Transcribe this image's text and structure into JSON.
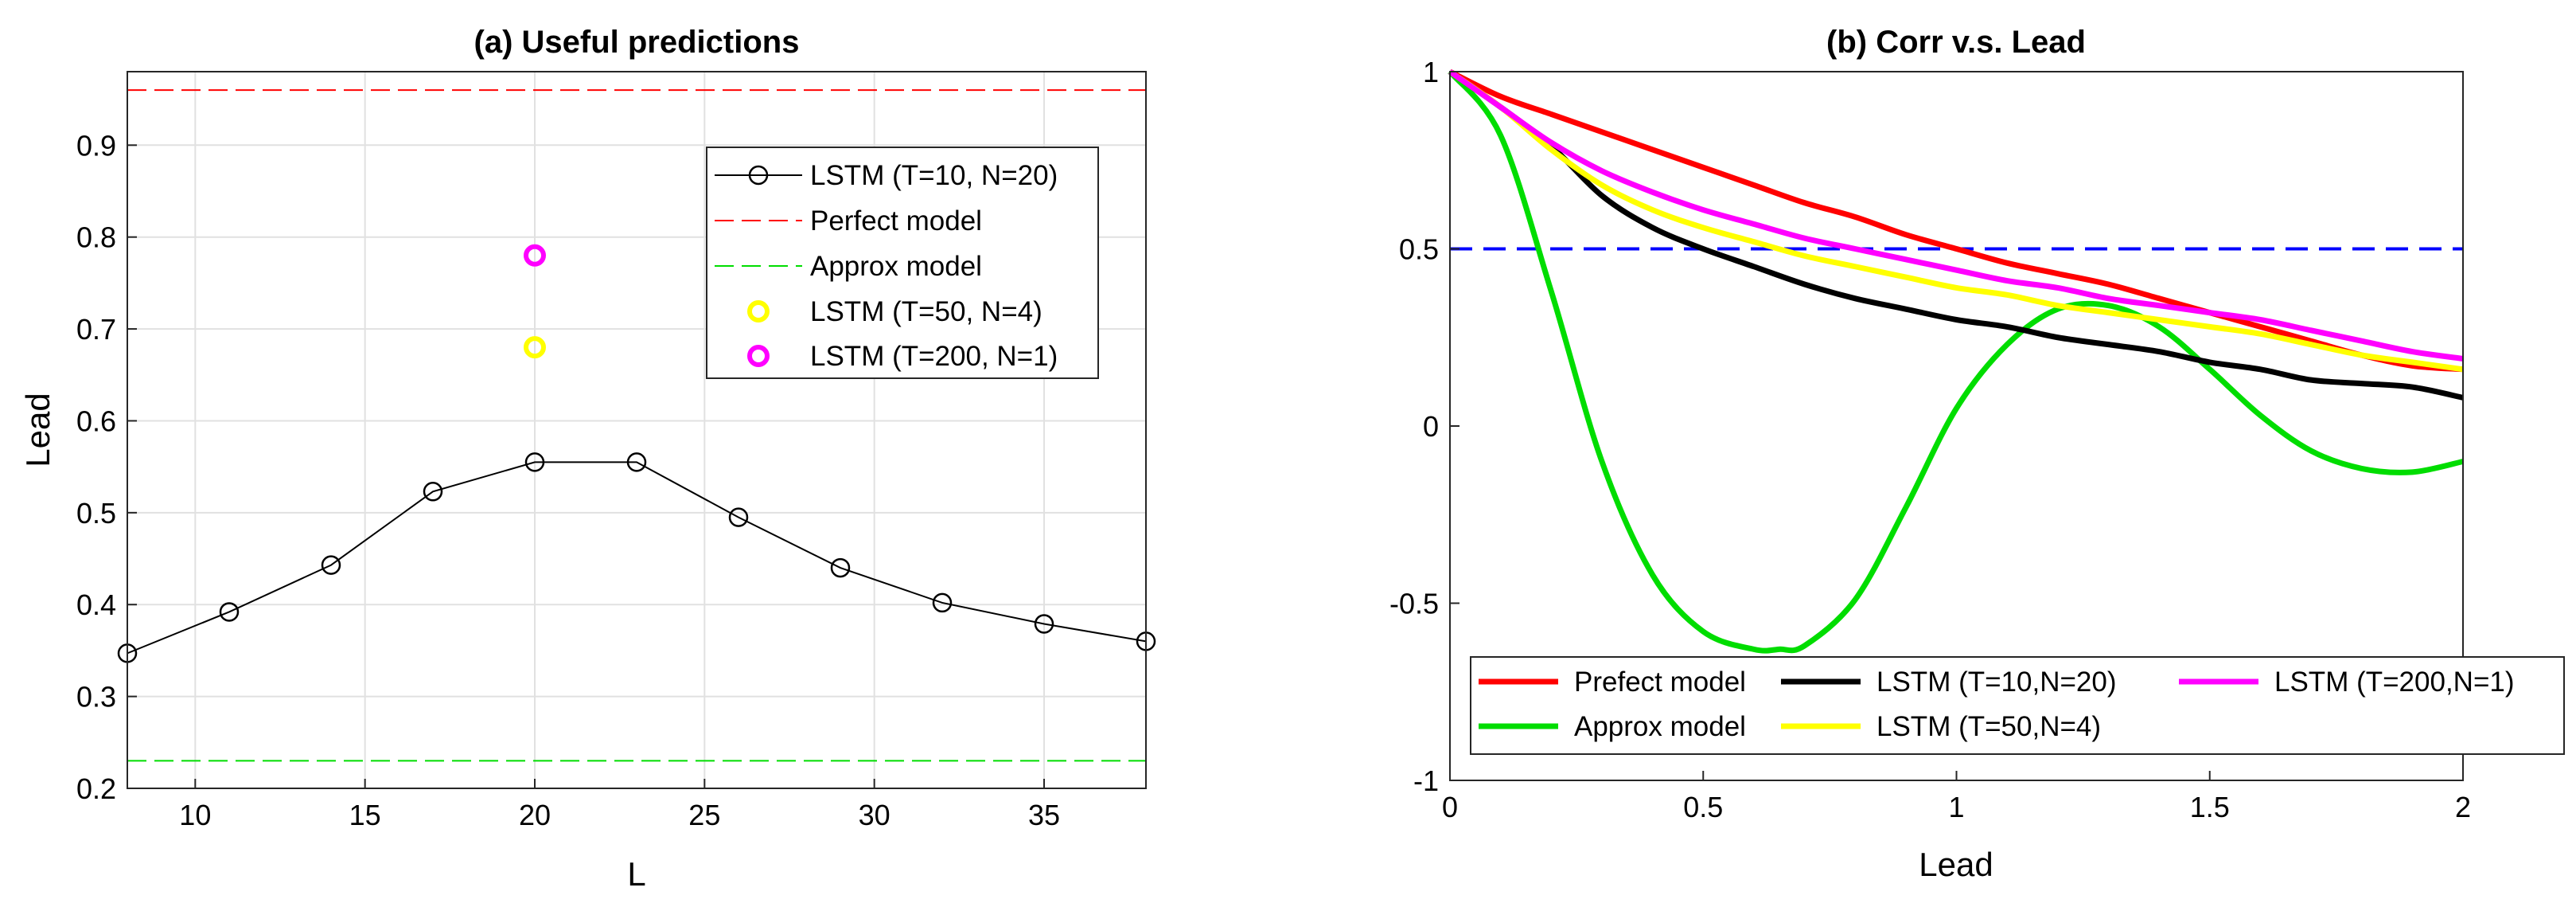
{
  "chart_data": [
    {
      "type": "line",
      "title": "(a) Useful predictions",
      "xlabel": "L",
      "ylabel": "Lead",
      "xlim": [
        8,
        38
      ],
      "ylim": [
        0.2,
        0.98
      ],
      "grid": true,
      "xticks": [
        10,
        15,
        20,
        25,
        30,
        35
      ],
      "yticks": [
        0.2,
        0.3,
        0.4,
        0.5,
        0.6,
        0.7,
        0.8,
        0.9
      ],
      "series": [
        {
          "name": "LSTM (T=10, N=20)",
          "color": "#000000",
          "style": "line-circle",
          "x": [
            8,
            11,
            14,
            17,
            20,
            23,
            26,
            29,
            32,
            35,
            38
          ],
          "y": [
            0.347,
            0.392,
            0.443,
            0.523,
            0.555,
            0.555,
            0.495,
            0.44,
            0.402,
            0.379,
            0.36
          ]
        },
        {
          "name": "Perfect model",
          "color": "#ff0000",
          "style": "dashed-hline",
          "y": 0.96
        },
        {
          "name": "Approx model",
          "color": "#00dd00",
          "style": "dashed-hline",
          "y": 0.23
        },
        {
          "name": "LSTM (T=50, N=4)",
          "color": "#ffff00",
          "style": "marker",
          "x": [
            20
          ],
          "y": [
            0.68
          ]
        },
        {
          "name": "LSTM (T=200, N=1)",
          "color": "#ff00ff",
          "style": "marker",
          "x": [
            20
          ],
          "y": [
            0.78
          ]
        }
      ],
      "legend_position": "top-right"
    },
    {
      "type": "line",
      "title": "(b) Corr v.s. Lead",
      "xlabel": "Lead",
      "ylabel": "",
      "xlim": [
        0,
        2
      ],
      "ylim": [
        -1,
        1
      ],
      "grid": false,
      "xticks": [
        0,
        0.5,
        1,
        1.5,
        2
      ],
      "yticks": [
        -1,
        -0.5,
        0,
        0.5,
        1
      ],
      "reference_line": {
        "y": 0.5,
        "color": "#0000ff",
        "style": "dashed"
      },
      "series": [
        {
          "name": "Prefect model",
          "color": "#ff0000",
          "x": [
            0,
            0.1,
            0.2,
            0.3,
            0.4,
            0.5,
            0.6,
            0.7,
            0.8,
            0.9,
            1.0,
            1.1,
            1.2,
            1.3,
            1.4,
            1.5,
            1.6,
            1.7,
            1.8,
            1.9,
            2.0
          ],
          "y": [
            1.0,
            0.93,
            0.88,
            0.83,
            0.78,
            0.73,
            0.68,
            0.63,
            0.59,
            0.54,
            0.5,
            0.46,
            0.43,
            0.4,
            0.36,
            0.32,
            0.28,
            0.24,
            0.2,
            0.17,
            0.16
          ]
        },
        {
          "name": "LSTM (T=10,N=20)",
          "color": "#000000",
          "x": [
            0,
            0.1,
            0.2,
            0.3,
            0.4,
            0.5,
            0.6,
            0.7,
            0.8,
            0.9,
            1.0,
            1.1,
            1.2,
            1.3,
            1.4,
            1.5,
            1.6,
            1.7,
            1.8,
            1.9,
            2.0
          ],
          "y": [
            1.0,
            0.9,
            0.79,
            0.65,
            0.56,
            0.5,
            0.45,
            0.4,
            0.36,
            0.33,
            0.3,
            0.28,
            0.25,
            0.23,
            0.21,
            0.18,
            0.16,
            0.13,
            0.12,
            0.11,
            0.08
          ]
        },
        {
          "name": "LSTM (T=200,N=1)",
          "color": "#ff00ff",
          "x": [
            0,
            0.1,
            0.2,
            0.3,
            0.4,
            0.5,
            0.6,
            0.7,
            0.8,
            0.9,
            1.0,
            1.1,
            1.2,
            1.3,
            1.4,
            1.5,
            1.6,
            1.7,
            1.8,
            1.9,
            2.0
          ],
          "y": [
            1.0,
            0.9,
            0.8,
            0.72,
            0.66,
            0.61,
            0.57,
            0.53,
            0.5,
            0.47,
            0.44,
            0.41,
            0.39,
            0.36,
            0.34,
            0.32,
            0.3,
            0.27,
            0.24,
            0.21,
            0.19
          ]
        },
        {
          "name": "Approx model",
          "color": "#00dd00",
          "x": [
            0,
            0.1,
            0.2,
            0.3,
            0.4,
            0.5,
            0.6,
            0.65,
            0.7,
            0.8,
            0.9,
            1.0,
            1.1,
            1.2,
            1.3,
            1.4,
            1.5,
            1.6,
            1.7,
            1.8,
            1.9,
            2.0
          ],
          "y": [
            1.0,
            0.82,
            0.38,
            -0.1,
            -0.42,
            -0.58,
            -0.63,
            -0.63,
            -0.62,
            -0.49,
            -0.23,
            0.05,
            0.23,
            0.33,
            0.34,
            0.28,
            0.16,
            0.03,
            -0.07,
            -0.12,
            -0.13,
            -0.1
          ]
        },
        {
          "name": "LSTM (T=50,N=4)",
          "color": "#ffff00",
          "x": [
            0,
            0.1,
            0.2,
            0.3,
            0.4,
            0.5,
            0.6,
            0.7,
            0.8,
            0.9,
            1.0,
            1.1,
            1.2,
            1.3,
            1.4,
            1.5,
            1.6,
            1.7,
            1.8,
            1.9,
            2.0
          ],
          "y": [
            1.0,
            0.9,
            0.78,
            0.68,
            0.61,
            0.56,
            0.52,
            0.48,
            0.45,
            0.42,
            0.39,
            0.37,
            0.34,
            0.32,
            0.3,
            0.28,
            0.26,
            0.23,
            0.2,
            0.18,
            0.16
          ]
        }
      ],
      "legend_position": "bottom"
    }
  ]
}
